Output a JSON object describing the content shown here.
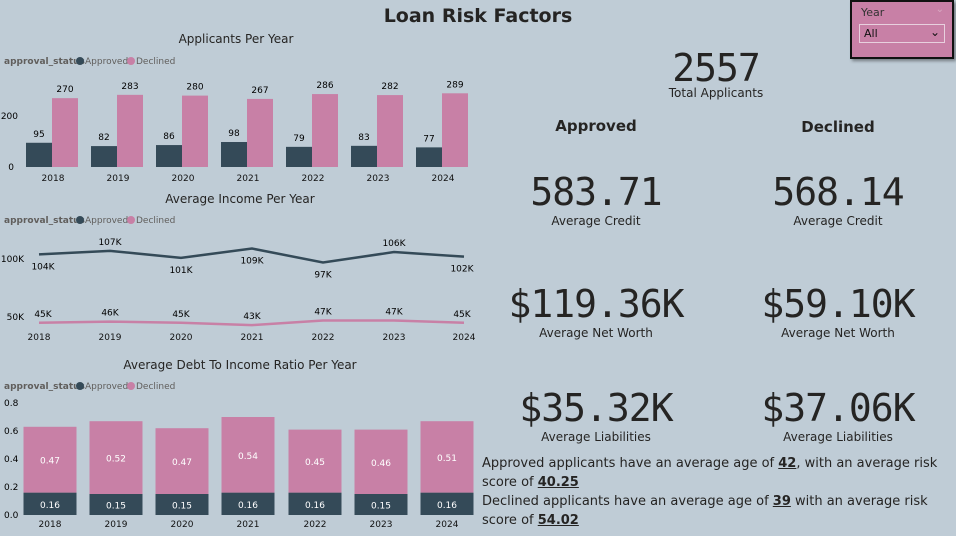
{
  "title": "Loan Risk Factors",
  "colors": {
    "approved": "#344a58",
    "declined": "#c880a6",
    "background": "#bfccd6"
  },
  "slicer": {
    "label": "Year",
    "value": "All"
  },
  "total": {
    "value": "2557",
    "label": "Total Applicants"
  },
  "approved": {
    "heading": "Approved",
    "credit": "583.71",
    "credit_label": "Average Credit",
    "net_worth": "$119.36K",
    "net_worth_label": "Average Net Worth",
    "liabilities": "$35.32K",
    "liabilities_label": "Average Liabilities"
  },
  "declined": {
    "heading": "Declined",
    "credit": "568.14",
    "credit_label": "Average Credit",
    "net_worth": "$59.10K",
    "net_worth_label": "Average Net Worth",
    "liabilities": "$37.06K",
    "liabilities_label": "Average Liabilities"
  },
  "summary": {
    "approved_pre": "Approved applicants have an average age of ",
    "approved_age": "42",
    "approved_mid": ", with an average risk score of ",
    "approved_risk": "40.25",
    "declined_pre": "Declined applicants have an average age of ",
    "declined_age": "39",
    "declined_mid": " with an average risk score of ",
    "declined_risk": "54.02"
  },
  "chart_data": [
    {
      "type": "bar",
      "title": "Applicants Per Year",
      "legend_title": "approval_status",
      "legend": [
        "Approved",
        "Declined"
      ],
      "categories": [
        "2018",
        "2019",
        "2020",
        "2021",
        "2022",
        "2023",
        "2024"
      ],
      "series": [
        {
          "name": "Approved",
          "values": [
            95,
            82,
            86,
            98,
            79,
            83,
            77
          ]
        },
        {
          "name": "Declined",
          "values": [
            270,
            283,
            280,
            267,
            286,
            282,
            289
          ]
        }
      ],
      "yticks": [
        "0",
        "200"
      ],
      "ylim": [
        0,
        300
      ]
    },
    {
      "type": "line",
      "title": "Average Income Per Year",
      "legend_title": "approval_status",
      "legend": [
        "Approved",
        "Declined"
      ],
      "categories": [
        "2018",
        "2019",
        "2020",
        "2021",
        "2022",
        "2023",
        "2024"
      ],
      "series": [
        {
          "name": "Approved",
          "values": [
            104,
            107,
            101,
            109,
            97,
            106,
            102
          ],
          "labels": [
            "104K",
            "107K",
            "101K",
            "109K",
            "97K",
            "106K",
            "102K"
          ]
        },
        {
          "name": "Declined",
          "values": [
            45,
            46,
            45,
            43,
            47,
            47,
            45
          ],
          "labels": [
            "45K",
            "46K",
            "45K",
            "43K",
            "47K",
            "47K",
            "45K"
          ]
        }
      ],
      "yticks": [
        "50K",
        "100K"
      ]
    },
    {
      "type": "bar",
      "stacked": true,
      "title": "Average Debt To Income Ratio Per Year",
      "legend_title": "approval_status",
      "legend": [
        "Approved",
        "Declined"
      ],
      "categories": [
        "2018",
        "2019",
        "2020",
        "2021",
        "2022",
        "2023",
        "2024"
      ],
      "series": [
        {
          "name": "Approved",
          "values": [
            0.16,
            0.15,
            0.15,
            0.16,
            0.16,
            0.15,
            0.16
          ]
        },
        {
          "name": "Declined",
          "values": [
            0.47,
            0.52,
            0.47,
            0.54,
            0.45,
            0.46,
            0.51
          ]
        }
      ],
      "yticks": [
        "0.0",
        "0.2",
        "0.4",
        "0.6",
        "0.8"
      ],
      "ylim": [
        0,
        0.8
      ]
    }
  ]
}
